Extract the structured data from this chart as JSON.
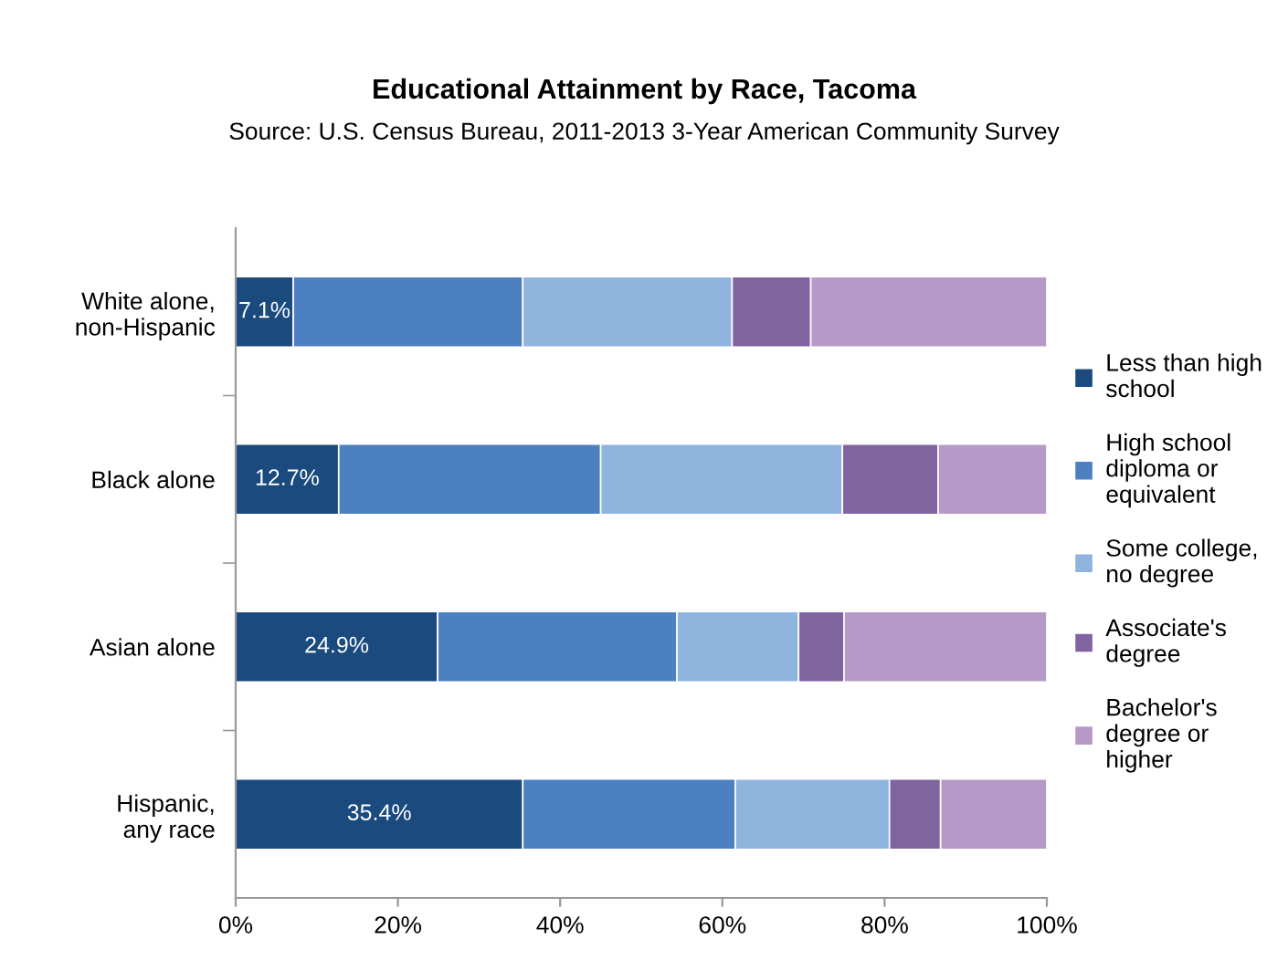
{
  "chart_data": {
    "type": "bar",
    "orientation": "horizontal",
    "stacked": true,
    "title": "Educational Attainment by Race, Tacoma",
    "subtitle": "Source: U.S. Census Bureau, 2011-2013 3-Year American Community Survey",
    "categories": [
      "White alone,\nnon-Hispanic",
      "Black alone",
      "Asian alone",
      "Hispanic,\nany race"
    ],
    "series": [
      {
        "name": "Less than high school",
        "color": "#1a4a7e",
        "values": [
          7.1,
          12.7,
          24.9,
          35.4
        ],
        "value_labels": [
          "7.1%",
          "12.7%",
          "24.9%",
          "35.4%"
        ]
      },
      {
        "name": "High school diploma or equivalent",
        "color": "#4c80c0",
        "values": [
          28.3,
          32.3,
          29.5,
          26.2
        ]
      },
      {
        "name": "Some college, no degree",
        "color": "#8fb4dd",
        "values": [
          25.8,
          29.8,
          15.0,
          19.0
        ]
      },
      {
        "name": "Associate's degree",
        "color": "#8064a0",
        "values": [
          9.7,
          11.8,
          5.6,
          6.3
        ]
      },
      {
        "name": "Bachelor's degree or higher",
        "color": "#b799c7",
        "values": [
          29.1,
          13.4,
          25.0,
          13.1
        ]
      }
    ],
    "xlim": [
      0,
      100
    ],
    "xticks": [
      {
        "value": 0,
        "label": "0%"
      },
      {
        "value": 20,
        "label": "20%"
      },
      {
        "value": 40,
        "label": "40%"
      },
      {
        "value": 60,
        "label": "60%"
      },
      {
        "value": 80,
        "label": "80%"
      },
      {
        "value": 100,
        "label": "100%"
      }
    ],
    "grid": false,
    "legend": "right"
  }
}
